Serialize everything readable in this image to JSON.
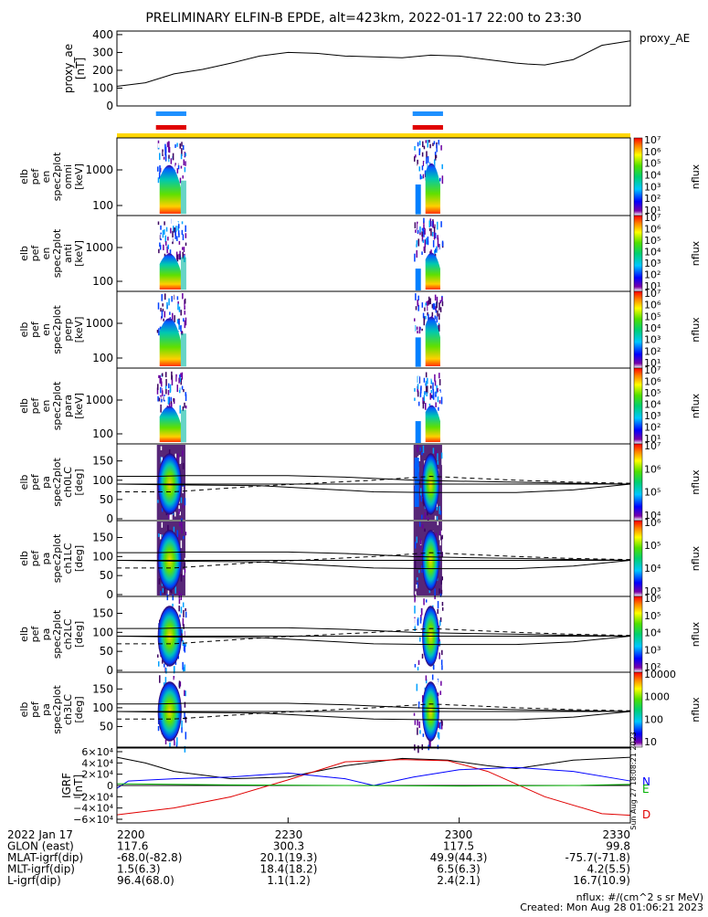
{
  "title": "PRELIMINARY ELFIN-B EPDE, alt=423km, 2022-01-17 22:00 to 23:30",
  "ae_panel": {
    "ylabel_lines": [
      "proxy_ae",
      "[nT]"
    ],
    "legend": "proxy_AE",
    "yticks": [
      "400",
      "300",
      "200",
      "100",
      "0"
    ],
    "chart_data": {
      "type": "line",
      "x_minutes": [
        0,
        5,
        10,
        15,
        20,
        25,
        30,
        35,
        40,
        45,
        50,
        55,
        60,
        65,
        70,
        72,
        75,
        80,
        85,
        90
      ],
      "values": [
        110,
        130,
        180,
        205,
        240,
        280,
        300,
        295,
        280,
        275,
        270,
        285,
        280,
        260,
        240,
        235,
        230,
        260,
        340,
        365
      ],
      "ylim": [
        0,
        420
      ]
    }
  },
  "spec_panels": [
    {
      "ylabel_lines": [
        "elb",
        "pef",
        "en",
        "spec2plot",
        "omni",
        "[keV]"
      ],
      "yticks": [
        "1000",
        "100"
      ],
      "cbar_labels": [
        "10⁷",
        "10⁶",
        "10⁵",
        "10⁴",
        "10³",
        "10²",
        "10¹"
      ],
      "cbar_title": "nflux"
    },
    {
      "ylabel_lines": [
        "elb",
        "pef",
        "en",
        "spec2plot",
        "anti",
        "[keV]"
      ],
      "yticks": [
        "1000",
        "100"
      ],
      "cbar_labels": [
        "10⁷",
        "10⁶",
        "10⁵",
        "10⁴",
        "10³",
        "10²",
        "10¹"
      ],
      "cbar_title": "nflux"
    },
    {
      "ylabel_lines": [
        "elb",
        "pef",
        "en",
        "spec2plot",
        "perp",
        "[keV]"
      ],
      "yticks": [
        "1000",
        "100"
      ],
      "cbar_labels": [
        "10⁷",
        "10⁶",
        "10⁵",
        "10⁴",
        "10³",
        "10²",
        "10¹"
      ],
      "cbar_title": "nflux"
    },
    {
      "ylabel_lines": [
        "elb",
        "pef",
        "en",
        "spec2plot",
        "para",
        "[keV]"
      ],
      "yticks": [
        "1000",
        "100"
      ],
      "cbar_labels": [
        "10⁷",
        "10⁶",
        "10⁵",
        "10⁴",
        "10³",
        "10²",
        "10¹"
      ],
      "cbar_title": "nflux"
    }
  ],
  "pa_panels": [
    {
      "ylabel_lines": [
        "elb",
        "pef",
        "pa",
        "spec2plot",
        "ch0LC",
        "[deg]"
      ],
      "yticks": [
        "150",
        "100",
        "50",
        "0"
      ],
      "cbar_labels": [
        "10⁷",
        "10⁶",
        "10⁵",
        "10⁴"
      ],
      "cbar_title": "nflux"
    },
    {
      "ylabel_lines": [
        "elb",
        "pef",
        "pa",
        "spec2plot",
        "ch1LC",
        "[deg]"
      ],
      "yticks": [
        "150",
        "100",
        "50",
        "0"
      ],
      "cbar_labels": [
        "10⁶",
        "10⁵",
        "10⁴",
        "10³"
      ],
      "cbar_title": "nflux"
    },
    {
      "ylabel_lines": [
        "elb",
        "pef",
        "pa",
        "spec2plot",
        "ch2LC",
        "[deg]"
      ],
      "yticks": [
        "150",
        "100",
        "50",
        "0"
      ],
      "cbar_labels": [
        "10⁶",
        "10⁵",
        "10⁴",
        "10³",
        "10²"
      ],
      "cbar_title": "nflux"
    },
    {
      "ylabel_lines": [
        "elb",
        "pef",
        "pa",
        "spec2plot",
        "ch3LC",
        "[deg]"
      ],
      "yticks": [
        "150",
        "100",
        "50"
      ],
      "cbar_labels": [
        "10000",
        "1000",
        "100",
        "10"
      ],
      "cbar_title": "nflux"
    }
  ],
  "igrf_panel": {
    "ylabel_lines": [
      "IGRF",
      "[nT]"
    ],
    "yticks": [
      "6×10⁴",
      "4×10⁴",
      "2×10⁴",
      "0",
      "−2×10⁴",
      "−4×10⁴",
      "−6×10⁴"
    ],
    "legend": {
      "N": "N",
      "E": "E",
      "D": "D"
    },
    "colors": {
      "N": "#0000ff",
      "E": "#00b000",
      "D": "#e00000",
      "T": "#000000"
    },
    "side_note": "Sun Aug 27 18:08:21 2023"
  },
  "spectrum_time_ranges": [
    [
      7,
      12
    ],
    [
      52,
      57
    ]
  ],
  "ephemeris": {
    "rows": [
      {
        "label": "2022 Jan 17",
        "values": [
          "2200",
          "2230",
          "2300",
          "2330"
        ]
      },
      {
        "label": "GLON (east)",
        "values": [
          "117.6",
          "300.3",
          "117.5",
          "99.8"
        ]
      },
      {
        "label": "MLAT-igrf(dip)",
        "values": [
          "-68.0(-82.8)",
          "20.1(19.3)",
          "49.9(44.3)",
          "-75.7(-71.8)"
        ]
      },
      {
        "label": "MLT-igrf(dip)",
        "values": [
          "1.5(6.3)",
          "18.4(18.2)",
          "6.5(6.3)",
          "4.2(5.5)"
        ]
      },
      {
        "label": "L-igrf(dip)",
        "values": [
          "96.4(68.0)",
          "1.1(1.2)",
          "2.4(2.1)",
          "16.7(10.9)"
        ]
      }
    ]
  },
  "footer": {
    "units": "nflux: #/(cm^2 s sr MeV)",
    "created": "Created: Mon Aug 28 01:06:21 2023"
  },
  "accent_colors": {
    "blue_bar": "#1e90ff",
    "red_bar": "#e00000",
    "yellow_bar": "#ffd700"
  }
}
